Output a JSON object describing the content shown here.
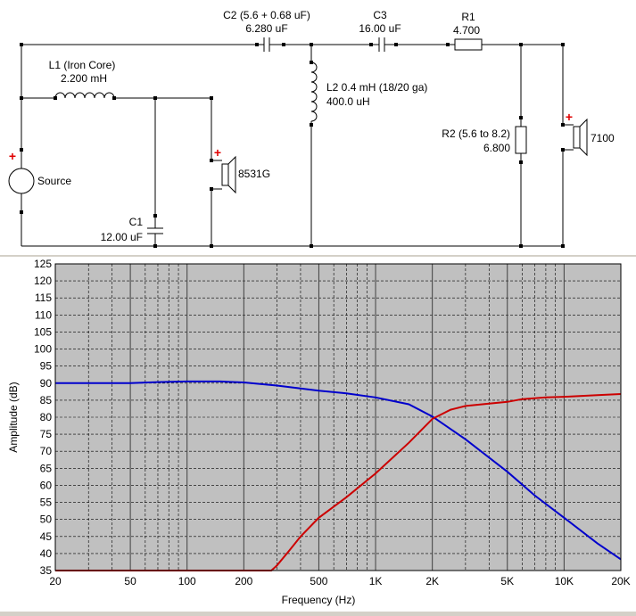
{
  "schematic": {
    "source": {
      "label": "Source",
      "polarity": "+"
    },
    "components": {
      "l1": {
        "name": "L1 (Iron Core)",
        "value": "2.200 mH"
      },
      "c1": {
        "name": "C1",
        "value": "12.00 uF"
      },
      "woofer": {
        "name": "8531G",
        "polarity": "+"
      },
      "c2": {
        "name": "C2 (5.6 + 0.68 uF)",
        "value": "6.280 uF"
      },
      "c3": {
        "name": "C3",
        "value": "16.00 uF"
      },
      "r1": {
        "name": "R1",
        "value": "4.700"
      },
      "l2": {
        "name": "L2 0.4 mH (18/20 ga)",
        "value": "400.0 uH"
      },
      "r2": {
        "name": "R2 (5.6 to 8.2)",
        "value": "6.800"
      },
      "tweeter": {
        "name": "7100",
        "polarity": "+"
      }
    }
  },
  "chart_data": {
    "type": "line",
    "xlabel": "Frequency (Hz)",
    "ylabel": "Amplitude (dB)",
    "xscale": "log",
    "xlim": [
      20,
      20000
    ],
    "ylim": [
      35,
      125
    ],
    "x_ticks": [
      {
        "value": 20,
        "label": "20"
      },
      {
        "value": 50,
        "label": "50"
      },
      {
        "value": 100,
        "label": "100"
      },
      {
        "value": 200,
        "label": "200"
      },
      {
        "value": 500,
        "label": "500"
      },
      {
        "value": 1000,
        "label": "1K"
      },
      {
        "value": 2000,
        "label": "2K"
      },
      {
        "value": 5000,
        "label": "5K"
      },
      {
        "value": 10000,
        "label": "10K"
      },
      {
        "value": 20000,
        "label": "20K"
      }
    ],
    "y_ticks": [
      35,
      40,
      45,
      50,
      55,
      60,
      65,
      70,
      75,
      80,
      85,
      90,
      95,
      100,
      105,
      110,
      115,
      120,
      125
    ],
    "grid": true,
    "plot_background": "#c0c0c0",
    "series": [
      {
        "color": "#0000cc",
        "points": [
          [
            20,
            90
          ],
          [
            50,
            90
          ],
          [
            70,
            90.3
          ],
          [
            100,
            90.5
          ],
          [
            150,
            90.5
          ],
          [
            200,
            90.2
          ],
          [
            300,
            89.3
          ],
          [
            500,
            87.8
          ],
          [
            700,
            87
          ],
          [
            1000,
            85.8
          ],
          [
            1500,
            83.8
          ],
          [
            2000,
            80.2
          ],
          [
            3000,
            73.5
          ],
          [
            5000,
            64
          ],
          [
            7000,
            57
          ],
          [
            10000,
            50.5
          ],
          [
            15000,
            43
          ],
          [
            20000,
            38.3
          ]
        ]
      },
      {
        "color": "#cc0000",
        "points": [
          [
            20,
            35
          ],
          [
            100,
            35
          ],
          [
            200,
            35
          ],
          [
            280,
            35
          ],
          [
            300,
            36.5
          ],
          [
            350,
            41
          ],
          [
            400,
            45
          ],
          [
            500,
            50.5
          ],
          [
            700,
            56.5
          ],
          [
            1000,
            63.5
          ],
          [
            1500,
            72.5
          ],
          [
            2000,
            79.5
          ],
          [
            2500,
            82.2
          ],
          [
            3000,
            83.3
          ],
          [
            4000,
            84
          ],
          [
            5000,
            84.5
          ],
          [
            6000,
            85.3
          ],
          [
            8000,
            85.8
          ],
          [
            10000,
            86
          ],
          [
            15000,
            86.5
          ],
          [
            20000,
            86.8
          ]
        ]
      }
    ]
  }
}
